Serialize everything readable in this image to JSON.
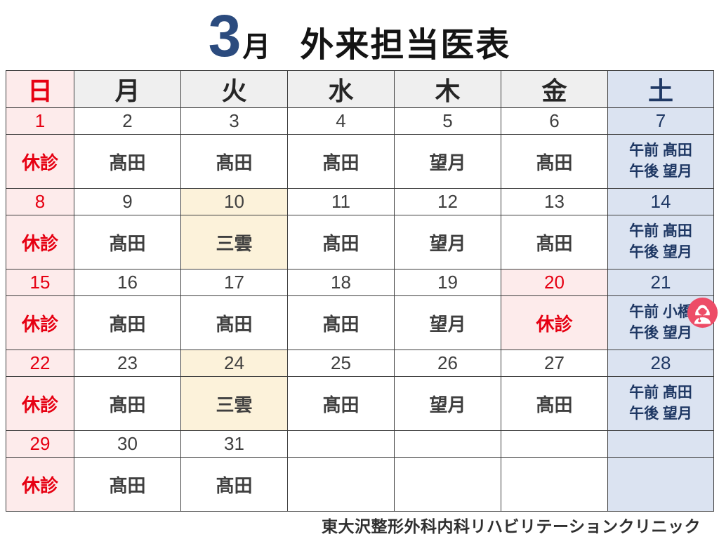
{
  "title": {
    "month_number": "3",
    "month_suffix": "月",
    "heading": "外来担当医表"
  },
  "footer": {
    "clinic_name": "東大沢整形外科内科リハビリテーションクリニック"
  },
  "colors": {
    "accent_blue": "#2b4b7e",
    "red": "#e60012",
    "pink_bg": "#fdebeb",
    "gray_bg": "#efefef",
    "blue_bg": "#dbe3f1",
    "cream_bg": "#fcf2da",
    "navy_text": "#1f3864",
    "dark_text": "#3f3f3f",
    "border": "#3d3d3d",
    "badge_pink": "#ed4c67"
  },
  "calendar": {
    "day_headers": [
      {
        "label": "日",
        "style": "sun"
      },
      {
        "label": "月",
        "style": "weekday"
      },
      {
        "label": "火",
        "style": "weekday"
      },
      {
        "label": "水",
        "style": "weekday"
      },
      {
        "label": "木",
        "style": "weekday"
      },
      {
        "label": "金",
        "style": "weekday"
      },
      {
        "label": "土",
        "style": "sat"
      }
    ],
    "weeks": [
      {
        "dates": [
          {
            "text": "1",
            "style": "sun"
          },
          {
            "text": "2",
            "style": "weekday"
          },
          {
            "text": "3",
            "style": "weekday"
          },
          {
            "text": "4",
            "style": "weekday"
          },
          {
            "text": "5",
            "style": "weekday"
          },
          {
            "text": "6",
            "style": "weekday"
          },
          {
            "text": "7",
            "style": "sat"
          }
        ],
        "doctors": [
          {
            "lines": [
              "休診"
            ],
            "style": "sun"
          },
          {
            "lines": [
              "髙田"
            ],
            "style": "weekday"
          },
          {
            "lines": [
              "髙田"
            ],
            "style": "weekday"
          },
          {
            "lines": [
              "髙田"
            ],
            "style": "weekday"
          },
          {
            "lines": [
              "望月"
            ],
            "style": "weekday"
          },
          {
            "lines": [
              "髙田"
            ],
            "style": "weekday"
          },
          {
            "lines": [
              "午前 髙田",
              "午後 望月"
            ],
            "style": "sat"
          }
        ]
      },
      {
        "dates": [
          {
            "text": "8",
            "style": "sun"
          },
          {
            "text": "9",
            "style": "weekday"
          },
          {
            "text": "10",
            "style": "highlight"
          },
          {
            "text": "11",
            "style": "weekday"
          },
          {
            "text": "12",
            "style": "weekday"
          },
          {
            "text": "13",
            "style": "weekday"
          },
          {
            "text": "14",
            "style": "sat"
          }
        ],
        "doctors": [
          {
            "lines": [
              "休診"
            ],
            "style": "sun"
          },
          {
            "lines": [
              "髙田"
            ],
            "style": "weekday"
          },
          {
            "lines": [
              "三雲"
            ],
            "style": "highlight"
          },
          {
            "lines": [
              "髙田"
            ],
            "style": "weekday"
          },
          {
            "lines": [
              "望月"
            ],
            "style": "weekday"
          },
          {
            "lines": [
              "髙田"
            ],
            "style": "weekday"
          },
          {
            "lines": [
              "午前 髙田",
              "午後 望月"
            ],
            "style": "sat"
          }
        ]
      },
      {
        "dates": [
          {
            "text": "15",
            "style": "sun"
          },
          {
            "text": "16",
            "style": "weekday"
          },
          {
            "text": "17",
            "style": "weekday"
          },
          {
            "text": "18",
            "style": "weekday"
          },
          {
            "text": "19",
            "style": "weekday"
          },
          {
            "text": "20",
            "style": "sun"
          },
          {
            "text": "21",
            "style": "sat"
          }
        ],
        "doctors": [
          {
            "lines": [
              "休診"
            ],
            "style": "sun"
          },
          {
            "lines": [
              "髙田"
            ],
            "style": "weekday"
          },
          {
            "lines": [
              "髙田"
            ],
            "style": "weekday"
          },
          {
            "lines": [
              "髙田"
            ],
            "style": "weekday"
          },
          {
            "lines": [
              "望月"
            ],
            "style": "weekday"
          },
          {
            "lines": [
              "休診"
            ],
            "style": "sun"
          },
          {
            "lines": [
              "午前 小橋",
              "午後 望月"
            ],
            "style": "sat",
            "badge": true
          }
        ]
      },
      {
        "dates": [
          {
            "text": "22",
            "style": "sun"
          },
          {
            "text": "23",
            "style": "weekday"
          },
          {
            "text": "24",
            "style": "highlight"
          },
          {
            "text": "25",
            "style": "weekday"
          },
          {
            "text": "26",
            "style": "weekday"
          },
          {
            "text": "27",
            "style": "weekday"
          },
          {
            "text": "28",
            "style": "sat"
          }
        ],
        "doctors": [
          {
            "lines": [
              "休診"
            ],
            "style": "sun"
          },
          {
            "lines": [
              "髙田"
            ],
            "style": "weekday"
          },
          {
            "lines": [
              "三雲"
            ],
            "style": "highlight"
          },
          {
            "lines": [
              "髙田"
            ],
            "style": "weekday"
          },
          {
            "lines": [
              "望月"
            ],
            "style": "weekday"
          },
          {
            "lines": [
              "髙田"
            ],
            "style": "weekday"
          },
          {
            "lines": [
              "午前 髙田",
              "午後 望月"
            ],
            "style": "sat"
          }
        ]
      },
      {
        "dates": [
          {
            "text": "29",
            "style": "sun"
          },
          {
            "text": "30",
            "style": "weekday"
          },
          {
            "text": "31",
            "style": "weekday"
          },
          {
            "text": "",
            "style": "weekday"
          },
          {
            "text": "",
            "style": "weekday"
          },
          {
            "text": "",
            "style": "weekday"
          },
          {
            "text": "",
            "style": "sat"
          }
        ],
        "doctors": [
          {
            "lines": [
              "休診"
            ],
            "style": "sun"
          },
          {
            "lines": [
              "髙田"
            ],
            "style": "weekday"
          },
          {
            "lines": [
              "髙田"
            ],
            "style": "weekday"
          },
          {
            "lines": [],
            "style": "weekday"
          },
          {
            "lines": [],
            "style": "weekday"
          },
          {
            "lines": [],
            "style": "weekday"
          },
          {
            "lines": [],
            "style": "sat"
          }
        ]
      }
    ]
  }
}
